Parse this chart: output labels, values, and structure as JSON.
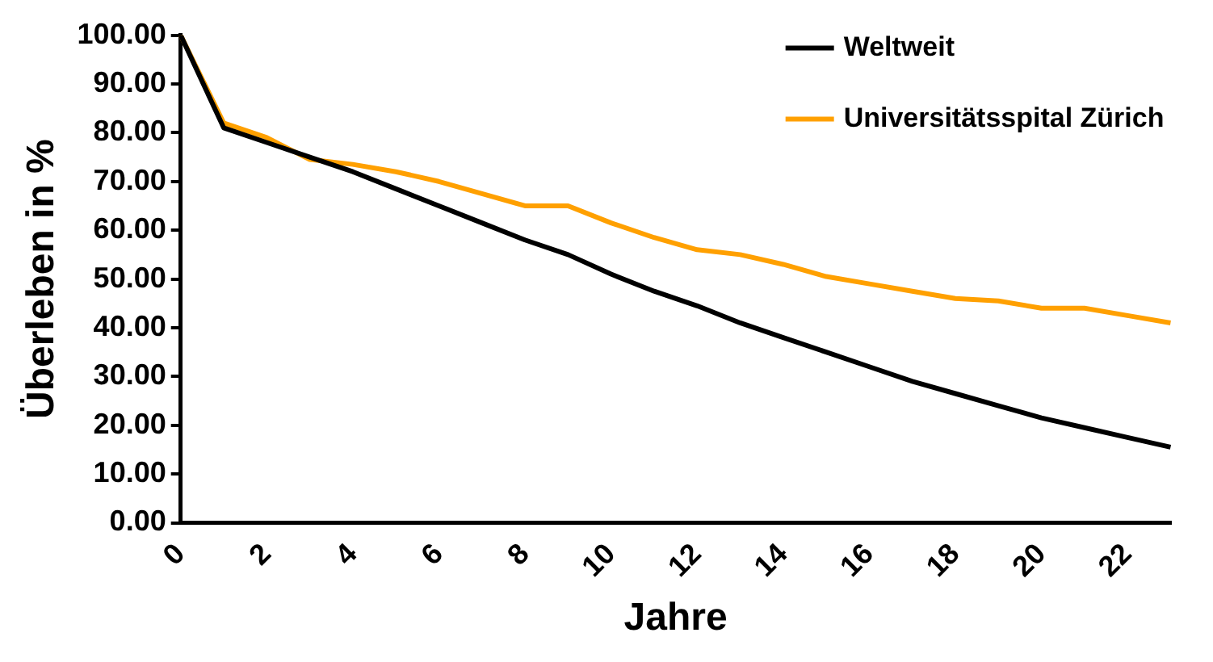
{
  "chart_data": {
    "type": "line",
    "xlabel": "Jahre",
    "ylabel": "Überleben in %",
    "categories": [
      "0",
      null,
      "2",
      null,
      "4",
      null,
      "6",
      null,
      "8",
      null,
      "10",
      null,
      "12",
      null,
      "14",
      null,
      "16",
      null,
      "18",
      null,
      "20",
      null,
      "22",
      null
    ],
    "series": [
      {
        "name": "Weltweit",
        "color": "#000000",
        "values": [
          100,
          81,
          78,
          75,
          72,
          68.5,
          65,
          61.5,
          58,
          55,
          51,
          47.5,
          44.5,
          41,
          38,
          35,
          32,
          29,
          26.5,
          24,
          21.5,
          19.5,
          17.5,
          15.5
        ]
      },
      {
        "name": "Universitätsspital Zürich",
        "color": "#ffa000",
        "values": [
          100,
          82,
          79,
          74.5,
          73.5,
          72,
          70,
          67.5,
          65,
          65,
          61.5,
          58.5,
          56,
          55,
          53,
          50.5,
          49,
          47.5,
          46,
          45.5,
          44,
          44,
          42.5,
          41
        ]
      }
    ],
    "ylim": [
      0,
      100
    ],
    "yticks": [
      {
        "value": 0,
        "label": "0.00"
      },
      {
        "value": 10,
        "label": "10.00"
      },
      {
        "value": 20,
        "label": "20.00"
      },
      {
        "value": 30,
        "label": "30.00"
      },
      {
        "value": 40,
        "label": "40.00"
      },
      {
        "value": 50,
        "label": "50.00"
      },
      {
        "value": 60,
        "label": "60.00"
      },
      {
        "value": 70,
        "label": "70.00"
      },
      {
        "value": 80,
        "label": "80.00"
      },
      {
        "value": 90,
        "label": "90.00"
      },
      {
        "value": 100,
        "label": "100.00"
      }
    ],
    "grid": false,
    "legend": "top right",
    "marker": "none",
    "line_style": "solid"
  }
}
